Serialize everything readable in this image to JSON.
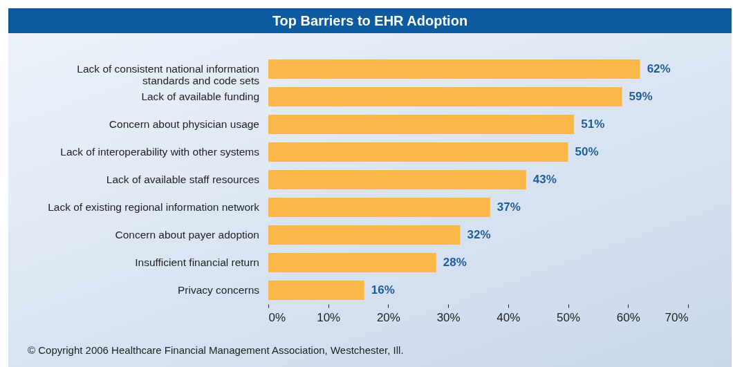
{
  "chart_data": {
    "type": "bar",
    "orientation": "horizontal",
    "title": "Top Barriers to EHR Adoption",
    "categories": [
      "Lack of consistent national information standards and code sets",
      "Lack of available funding",
      "Concern about physician usage",
      "Lack of interoperability with other systems",
      "Lack of available staff resources",
      "Lack of existing regional information network",
      "Concern about payer adoption",
      "Insufficient financial return",
      "Privacy concerns"
    ],
    "values": [
      62,
      59,
      51,
      50,
      43,
      37,
      32,
      28,
      16
    ],
    "value_labels": [
      "62%",
      "59%",
      "51%",
      "50%",
      "43%",
      "37%",
      "32%",
      "28%",
      "16%"
    ],
    "color": "#fbb84a",
    "xlim": [
      0,
      70
    ],
    "xticks": [
      {
        "value": 0,
        "label": "0%"
      },
      {
        "value": 10,
        "label": "10%"
      },
      {
        "value": 20,
        "label": "20%"
      },
      {
        "value": 30,
        "label": "30%"
      },
      {
        "value": 40,
        "label": "40%"
      },
      {
        "value": 50,
        "label": "50%"
      },
      {
        "value": 60,
        "label": "60%"
      },
      {
        "value": 70,
        "label": "70%"
      }
    ],
    "annotations": [
      "© Copyright 2006 Healthcare Financial Management Association, Westchester, Ill."
    ]
  }
}
